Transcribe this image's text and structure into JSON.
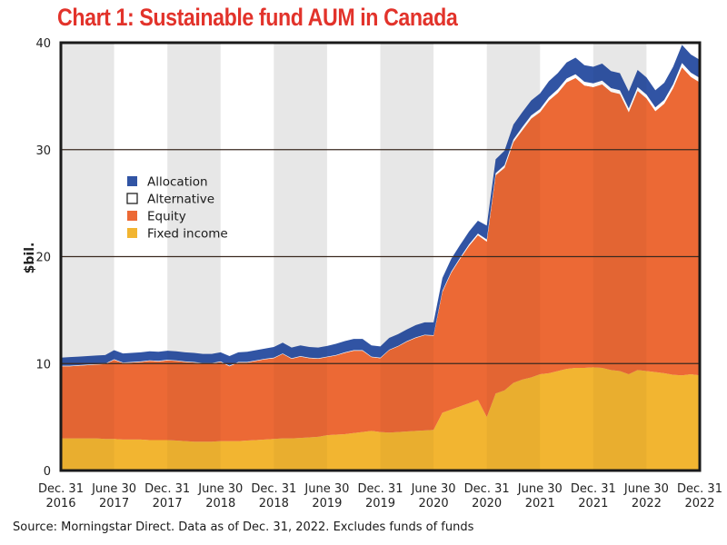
{
  "chart_data": {
    "type": "area",
    "stacked": true,
    "title": "Chart 1: Sustainable fund AUM in Canada",
    "xlabel": "",
    "ylabel": "$bil.",
    "ylim": [
      0,
      40
    ],
    "yticks": [
      0,
      10,
      20,
      30,
      40
    ],
    "grid": "horizontal",
    "legend_position": "upper-left",
    "x_tick_labels": [
      [
        "Dec. 31",
        "2016"
      ],
      [
        "June 30",
        "2017"
      ],
      [
        "Dec. 31",
        "2017"
      ],
      [
        "June 30",
        "2018"
      ],
      [
        "Dec. 31",
        "2018"
      ],
      [
        "June 30",
        "2019"
      ],
      [
        "Dec. 31",
        "2019"
      ],
      [
        "June 30",
        "2020"
      ],
      [
        "Dec. 31",
        "2020"
      ],
      [
        "June 30",
        "2021"
      ],
      [
        "Dec. 31",
        "2021"
      ],
      [
        "June 30",
        "2022"
      ],
      [
        "Dec. 31",
        "2022"
      ]
    ],
    "x_points": 73,
    "x_note": "monthly month-ends from Dec. 31 2016 to Dec. 31 2022",
    "series": [
      {
        "name": "Fixed income",
        "color": "#f2b531",
        "values": [
          3.0,
          3.0,
          3.0,
          3.0,
          3.0,
          2.95,
          2.95,
          2.9,
          2.9,
          2.9,
          2.85,
          2.85,
          2.85,
          2.8,
          2.75,
          2.7,
          2.7,
          2.7,
          2.75,
          2.75,
          2.75,
          2.8,
          2.85,
          2.9,
          2.95,
          3.0,
          3.0,
          3.05,
          3.1,
          3.15,
          3.3,
          3.35,
          3.4,
          3.5,
          3.6,
          3.7,
          3.6,
          3.55,
          3.6,
          3.65,
          3.7,
          3.75,
          3.8,
          5.4,
          5.7,
          6.0,
          6.3,
          6.6,
          5.0,
          7.2,
          7.5,
          8.2,
          8.5,
          8.7,
          9.0,
          9.1,
          9.3,
          9.5,
          9.6,
          9.6,
          9.65,
          9.6,
          9.4,
          9.3,
          9.0,
          9.4,
          9.3,
          9.2,
          9.1,
          8.95,
          8.9,
          9.0,
          8.9
        ]
      },
      {
        "name": "Equity",
        "color": "#ec6935",
        "values": [
          6.75,
          6.75,
          6.8,
          6.85,
          6.9,
          7.0,
          7.4,
          7.15,
          7.2,
          7.25,
          7.4,
          7.35,
          7.45,
          7.45,
          7.4,
          7.4,
          7.3,
          7.3,
          7.4,
          7.0,
          7.35,
          7.3,
          7.4,
          7.5,
          7.55,
          7.9,
          7.45,
          7.6,
          7.4,
          7.3,
          7.3,
          7.4,
          7.6,
          7.7,
          7.6,
          6.9,
          6.9,
          7.7,
          8.0,
          8.4,
          8.7,
          8.9,
          8.8,
          11.3,
          12.8,
          13.8,
          14.7,
          15.4,
          16.4,
          20.4,
          20.8,
          22.5,
          23.3,
          24.2,
          24.5,
          25.5,
          26.0,
          26.8,
          27.1,
          26.4,
          26.2,
          26.5,
          26.0,
          25.9,
          24.5,
          26.1,
          25.5,
          24.4,
          25.2,
          26.8,
          28.8,
          27.8,
          27.4
        ]
      },
      {
        "name": "Alternative",
        "color": "#ffffff",
        "values": [
          0.05,
          0.05,
          0.05,
          0.05,
          0.05,
          0.05,
          0.05,
          0.05,
          0.05,
          0.05,
          0.05,
          0.05,
          0.05,
          0.05,
          0.05,
          0.05,
          0.05,
          0.05,
          0.05,
          0.05,
          0.05,
          0.05,
          0.05,
          0.05,
          0.05,
          0.05,
          0.05,
          0.05,
          0.05,
          0.05,
          0.05,
          0.05,
          0.05,
          0.05,
          0.05,
          0.05,
          0.05,
          0.05,
          0.05,
          0.05,
          0.05,
          0.05,
          0.05,
          0.1,
          0.1,
          0.1,
          0.15,
          0.15,
          0.2,
          0.2,
          0.25,
          0.25,
          0.3,
          0.3,
          0.3,
          0.3,
          0.35,
          0.35,
          0.35,
          0.35,
          0.35,
          0.35,
          0.35,
          0.35,
          0.35,
          0.35,
          0.35,
          0.35,
          0.35,
          0.35,
          0.4,
          0.4,
          0.4
        ]
      },
      {
        "name": "Allocation",
        "color": "#3154a4",
        "values": [
          0.75,
          0.8,
          0.8,
          0.8,
          0.8,
          0.8,
          0.85,
          0.85,
          0.85,
          0.85,
          0.85,
          0.85,
          0.85,
          0.85,
          0.85,
          0.85,
          0.85,
          0.85,
          0.85,
          0.9,
          0.9,
          0.95,
          0.95,
          0.95,
          1.0,
          1.0,
          1.0,
          1.0,
          1.0,
          1.0,
          1.0,
          1.05,
          1.05,
          1.05,
          1.05,
          1.05,
          1.05,
          1.1,
          1.1,
          1.1,
          1.15,
          1.15,
          1.2,
          1.2,
          1.2,
          1.2,
          1.2,
          1.2,
          1.3,
          1.3,
          1.35,
          1.4,
          1.4,
          1.4,
          1.45,
          1.5,
          1.5,
          1.5,
          1.55,
          1.55,
          1.55,
          1.6,
          1.6,
          1.6,
          1.6,
          1.6,
          1.6,
          1.6,
          1.6,
          1.65,
          1.7,
          1.7,
          1.7
        ]
      }
    ],
    "legend": [
      "Allocation",
      "Alternative",
      "Equity",
      "Fixed income"
    ],
    "source": "Source: Morningstar Direct. Data as of Dec. 31, 2022. Excludes funds of funds"
  },
  "colors": {
    "title": "#e2332b",
    "stripe": "#f0f0f0",
    "frame": "#1a1a1a",
    "gridline": "#3a2a20"
  }
}
